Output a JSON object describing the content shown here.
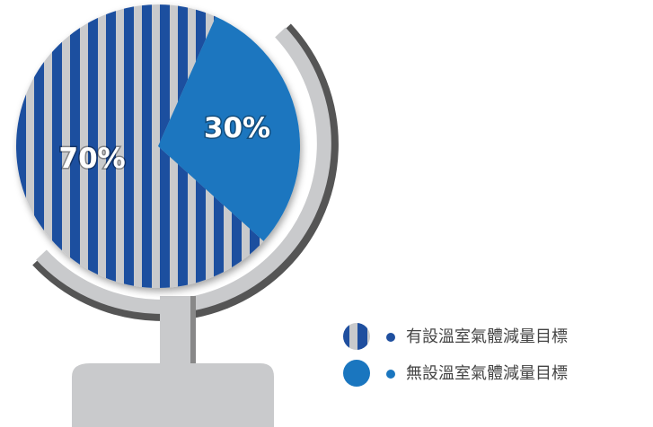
{
  "chart_data": {
    "type": "pie",
    "categories": [
      "有設溫室氣體減量目標",
      "無設溫室氣體減量目標"
    ],
    "values": [
      70,
      30
    ],
    "value_labels": [
      "70%",
      "30%"
    ],
    "colors": [
      "#1f4f9f",
      "#1a76bf"
    ]
  }
}
